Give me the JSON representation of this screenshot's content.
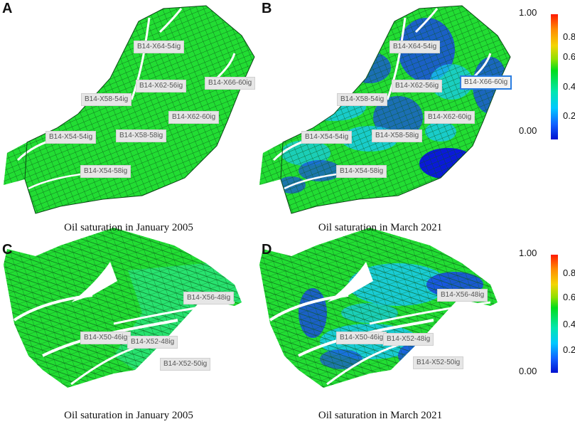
{
  "panels": {
    "A": {
      "letter": "A",
      "caption": "Oil saturation in January 2005",
      "wells": [
        "B14-X64-54ig",
        "B14-X62-56ig",
        "B14-X66-60ig",
        "B14-X58-54ig",
        "B14-X62-60ig",
        "B14-X54-54ig",
        "B14-X58-58ig",
        "B14-X54-58ig"
      ]
    },
    "B": {
      "letter": "B",
      "caption": "Oil saturation in March 2021",
      "wells": [
        "B14-X64-54ig",
        "B14-X62-56ig",
        "B14-X66-60ig",
        "B14-X58-54ig",
        "B14-X62-60ig",
        "B14-X54-54ig",
        "B14-X58-58ig",
        "B14-X54-58ig"
      ]
    },
    "C": {
      "letter": "C",
      "caption": "Oil saturation in January 2005",
      "wells": [
        "B14-X56-48ig",
        "B14-X50-46ig",
        "B14-X52-48ig",
        "B14-X52-50ig"
      ]
    },
    "D": {
      "letter": "D",
      "caption": "Oil saturation in March 2021",
      "wells": [
        "B14-X56-48ig",
        "B14-X50-46ig",
        "B14-X52-48ig",
        "B14-X52-50ig"
      ]
    }
  },
  "colorbar": {
    "ticks": [
      "1.00",
      "0.80",
      "0.60",
      "0.40",
      "0.20",
      "0.00"
    ],
    "colors": [
      "#ff1a00",
      "#ff8a00",
      "#f4d400",
      "#00dd1a",
      "#00c8ff",
      "#0010d0"
    ]
  },
  "colors": {
    "early_fill": "#22dd33",
    "mesh": "#0a5a1a",
    "depleted": "#1a4ae0",
    "highlight_border": "#2a7de1"
  }
}
